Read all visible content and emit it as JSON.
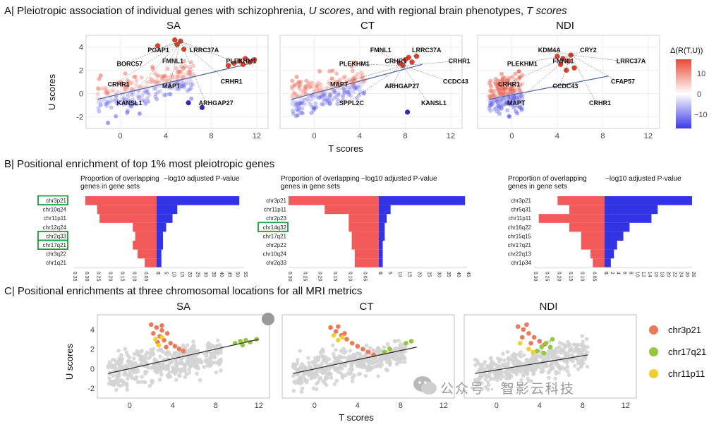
{
  "titles": {
    "a_prefix": "A| Pleiotropic association of individual genes with schizophrenia, ",
    "a_u": "U scores",
    "a_mid": ", and with regional brain phenotypes, ",
    "a_t": "T scores",
    "b": "B| Positional enrichment of top 1% most pleiotropic genes",
    "c": "C| Positional enrichments at three chromosomal locations for all MRI metrics"
  },
  "panelA": {
    "ylabel": "U scores",
    "xlabel": "T scores",
    "legend_title": "Δ(R(T,U))",
    "legend_ticks": [
      "10",
      "0",
      "−10"
    ],
    "colors": {
      "high": "#e84a35",
      "mid": "#ffffff",
      "low": "#3b3be8"
    },
    "panels": [
      {
        "title": "SA",
        "gene_labels": [
          "PGAP1",
          "LRRC37A",
          "BORC57",
          "FMNL1",
          "PLEKHM1",
          "CRHR1",
          "MAPT",
          "CRHR1",
          "KANSL1",
          "ARHGAP27"
        ]
      },
      {
        "title": "CT",
        "gene_labels": [
          "FMNL1",
          "LRRC37A",
          "PLEKHM1",
          "CRHR1",
          "CRHR1",
          "MAPT",
          "ARHGAP27",
          "CCDC43",
          "SPPL2C",
          "KANSL1"
        ]
      },
      {
        "title": "NDI",
        "gene_labels": [
          "KDM4A",
          "CRY2",
          "PLEKHM1",
          "FMNL1",
          "LRRC37A",
          "CRHR1",
          "CCDC43",
          "CFAP57",
          "MAPT",
          "CRHR1"
        ]
      }
    ]
  },
  "panelB": {
    "left_header": "Proportion of overlapping genes in gene sets",
    "right_header": "−log10 adjusted P-value",
    "colors": {
      "left": "#f25a5a",
      "right": "#3333e6",
      "highlight": "#1f9a3d"
    }
  },
  "panelC": {
    "ylabel": "U scores",
    "xlabel": "T scores",
    "titles": [
      "SA",
      "CT",
      "NDI"
    ],
    "legend": [
      {
        "name": "chr3p21",
        "color": "#ea7a5a"
      },
      {
        "name": "chr17q21",
        "color": "#93c83e"
      },
      {
        "name": "chr11p11",
        "color": "#f2cf2f"
      }
    ]
  },
  "watermark": "公众号 · 智影云科技",
  "chart_data": [
    {
      "type": "scatter",
      "id": "A-SA",
      "title": "SA",
      "xlabel": "T scores",
      "ylabel": "U scores",
      "xlim": [
        -3,
        13
      ],
      "ylim": [
        -3,
        5
      ],
      "xticks": [
        0,
        4,
        8,
        12
      ],
      "yticks": [
        -2,
        0,
        2,
        4
      ],
      "trend": [
        [
          -2,
          -0.5
        ],
        [
          11.5,
          2.6
        ]
      ],
      "highlight": [
        [
          9.5,
          2.4
        ],
        [
          10,
          2.6
        ],
        [
          10.5,
          2.8
        ],
        [
          11,
          3.0
        ],
        [
          11.4,
          2.7
        ],
        [
          11.8,
          2.9
        ],
        [
          10.8,
          2.5
        ],
        [
          5.3,
          4.5
        ],
        [
          5.0,
          4.2
        ],
        [
          4.8,
          4.6
        ],
        [
          5.6,
          3.8
        ],
        [
          3.3,
          4.1
        ],
        [
          7.2,
          -1.2
        ],
        [
          6.0,
          -0.8
        ]
      ]
    },
    {
      "type": "scatter",
      "id": "A-CT",
      "title": "CT",
      "xlabel": "T scores",
      "ylabel": "U scores",
      "xlim": [
        -3,
        13
      ],
      "ylim": [
        -3,
        5
      ],
      "xticks": [
        0,
        4,
        8,
        12
      ],
      "yticks": [
        -2,
        0,
        2,
        4
      ],
      "trend": [
        [
          -2,
          -0.5
        ],
        [
          9.5,
          2.5
        ]
      ],
      "highlight": [
        [
          7.5,
          2.6
        ],
        [
          8.0,
          2.9
        ],
        [
          8.3,
          3.1
        ],
        [
          7.8,
          2.4
        ],
        [
          8.6,
          2.7
        ],
        [
          9.0,
          3.2
        ],
        [
          8.2,
          -1.6
        ]
      ]
    },
    {
      "type": "scatter",
      "id": "A-NDI",
      "title": "NDI",
      "xlabel": "T scores",
      "ylabel": "U scores",
      "xlim": [
        -3,
        13
      ],
      "ylim": [
        -3,
        5
      ],
      "xticks": [
        0,
        4,
        8,
        12
      ],
      "yticks": [
        -2,
        0,
        2,
        4
      ],
      "trend": [
        [
          -2,
          -0.5
        ],
        [
          8.5,
          1.5
        ]
      ],
      "highlight": [
        [
          4.0,
          3.2
        ],
        [
          4.5,
          3.0
        ],
        [
          5.0,
          2.8
        ],
        [
          5.2,
          3.3
        ],
        [
          4.3,
          2.5
        ],
        [
          5.5,
          2.2
        ],
        [
          4.8,
          2.0
        ]
      ]
    },
    {
      "type": "bar",
      "id": "B-SA",
      "orientation": "diverging",
      "categories": [
        "chr3p21",
        "chr10q24",
        "chr11p11",
        "chr12q24",
        "chr2q33",
        "chr17q21",
        "chr3q22",
        "chr1q21"
      ],
      "highlighted": [
        "chr3p21",
        "chr2q33",
        "chr17q21"
      ],
      "left": {
        "label": "Proportion of overlapping genes in gene sets",
        "values": [
          0.3,
          0.25,
          0.24,
          0.1,
          0.09,
          0.1,
          0.08,
          0.05
        ],
        "ticks": [
          "0.35",
          "0.30",
          "0.25",
          "0.20",
          "0.15",
          "0.10",
          "0.05",
          "0"
        ],
        "max": 0.35
      },
      "right": {
        "label": "−log10 adjusted P-value",
        "values": [
          52,
          13,
          10,
          6,
          4,
          4,
          3,
          3
        ],
        "ticks": [
          "0",
          "5",
          "10",
          "15",
          "20",
          "25",
          "30",
          "35",
          "40",
          "45",
          "50",
          "55"
        ],
        "max": 55
      }
    },
    {
      "type": "bar",
      "id": "B-CT",
      "orientation": "diverging",
      "categories": [
        "chr3p21",
        "chr11p11",
        "chr2p23",
        "chr14q32",
        "chr17q21",
        "chr2p22",
        "chr10q24",
        "chr2q33"
      ],
      "highlighted": [
        "chr14q32"
      ],
      "left": {
        "label": "Proportion of overlapping genes in gene sets",
        "values": [
          0.3,
          0.18,
          0.1,
          0.1,
          0.09,
          0.09,
          0.08,
          0.08
        ],
        "ticks": [
          "0.30",
          "0.25",
          "0.20",
          "0.15",
          "0.10",
          "0.05",
          "0"
        ],
        "max": 0.3
      },
      "right": {
        "label": "−log10 adjusted P-value",
        "values": [
          44,
          6,
          4,
          3,
          3,
          2,
          2,
          2
        ],
        "ticks": [
          "0",
          "5",
          "10",
          "15",
          "20",
          "25",
          "30",
          "35",
          "40",
          "45"
        ],
        "max": 45
      }
    },
    {
      "type": "bar",
      "id": "B-NDI",
      "orientation": "diverging",
      "categories": [
        "chr3p21",
        "chr5q31",
        "chr11p11",
        "chr16q22",
        "chr15q15",
        "chr17q21",
        "chr22q13",
        "chr1p34"
      ],
      "highlighted": [],
      "left": {
        "label": "Proportion of overlapping genes in gene sets",
        "values": [
          0.2,
          0.15,
          0.28,
          0.15,
          0.1,
          0.1,
          0.06,
          0.05
        ],
        "ticks": [
          "0.30",
          "0.25",
          "0.20",
          "0.15",
          "0.10",
          "0.05",
          "0"
        ],
        "max": 0.3
      },
      "right": {
        "label": "−log10 adjusted P-value",
        "values": [
          28,
          17,
          15,
          8,
          6,
          4,
          3,
          2
        ],
        "ticks": [
          "0",
          "2",
          "4",
          "6",
          "8",
          "10",
          "12",
          "14",
          "16",
          "18",
          "20",
          "22",
          "24",
          "26",
          "28"
        ],
        "max": 28
      }
    },
    {
      "type": "scatter",
      "id": "C-SA",
      "title": "SA",
      "xlabel": "T scores",
      "ylabel": "U scores",
      "xlim": [
        -3,
        13
      ],
      "ylim": [
        -3,
        5.5
      ],
      "xticks": [
        0,
        4,
        8,
        12
      ],
      "yticks": [
        -2,
        0,
        2,
        4
      ],
      "trend": [
        [
          -2,
          -0.5
        ],
        [
          12,
          3.0
        ]
      ],
      "series": [
        {
          "name": "chr3p21",
          "points": [
            [
              2.0,
              4.5
            ],
            [
              2.5,
              4.2
            ],
            [
              3.0,
              3.9
            ],
            [
              3.5,
              3.6
            ],
            [
              2.2,
              3.6
            ],
            [
              2.8,
              3.3
            ],
            [
              3.2,
              2.9
            ],
            [
              3.8,
              2.6
            ],
            [
              4.2,
              2.3
            ],
            [
              4.6,
              2.0
            ],
            [
              5.0,
              1.8
            ],
            [
              3.0,
              4.4
            ],
            [
              2.6,
              2.7
            ],
            [
              3.4,
              2.2
            ]
          ]
        },
        {
          "name": "chr17q21",
          "points": [
            [
              9.8,
              2.6
            ],
            [
              10.3,
              2.8
            ],
            [
              10.8,
              2.9
            ],
            [
              11.2,
              2.7
            ],
            [
              11.8,
              3.0
            ],
            [
              10.5,
              2.4
            ]
          ]
        },
        {
          "name": "chr11p11",
          "points": [
            [
              2.4,
              3.0
            ],
            [
              2.7,
              2.4
            ],
            [
              3.0,
              3.2
            ]
          ]
        }
      ]
    },
    {
      "type": "scatter",
      "id": "C-CT",
      "title": "CT",
      "xlabel": "T scores",
      "ylabel": "U scores",
      "xlim": [
        -3,
        13
      ],
      "ylim": [
        -3,
        5.5
      ],
      "xticks": [
        0,
        4,
        8,
        12
      ],
      "yticks": [
        -2,
        0,
        2,
        4
      ],
      "trend": [
        [
          -2,
          -0.5
        ],
        [
          9.5,
          2.2
        ]
      ],
      "series": [
        {
          "name": "chr3p21",
          "points": [
            [
              1.5,
              4.2
            ],
            [
              2.0,
              3.8
            ],
            [
              2.5,
              3.4
            ],
            [
              3.0,
              3.0
            ],
            [
              3.5,
              2.6
            ],
            [
              4.0,
              2.3
            ],
            [
              4.5,
              2.0
            ],
            [
              5.0,
              1.7
            ],
            [
              5.5,
              1.4
            ],
            [
              2.2,
              4.3
            ],
            [
              2.8,
              3.6
            ]
          ]
        },
        {
          "name": "chr17q21",
          "points": [
            [
              6.5,
              1.7
            ],
            [
              7.0,
              2.0
            ],
            [
              8.5,
              2.6
            ],
            [
              9.0,
              2.8
            ]
          ]
        },
        {
          "name": "chr11p11",
          "points": [
            [
              1.8,
              3.4
            ],
            [
              2.2,
              2.9
            ],
            [
              2.6,
              3.2
            ]
          ]
        }
      ]
    },
    {
      "type": "scatter",
      "id": "C-NDI",
      "title": "NDI",
      "xlabel": "T scores",
      "ylabel": "U scores",
      "xlim": [
        -3,
        13
      ],
      "ylim": [
        -3,
        5.5
      ],
      "xticks": [
        0,
        4,
        8,
        12
      ],
      "yticks": [
        -2,
        0,
        2,
        4
      ],
      "trend": [
        [
          -2,
          -0.5
        ],
        [
          8.5,
          1.4
        ]
      ],
      "series": [
        {
          "name": "chr3p21",
          "points": [
            [
              2.0,
              4.3
            ],
            [
              2.5,
              4.0
            ],
            [
              3.0,
              3.6
            ],
            [
              3.5,
              3.2
            ],
            [
              4.0,
              2.8
            ],
            [
              4.5,
              2.5
            ],
            [
              2.4,
              3.2
            ],
            [
              3.2,
              2.6
            ],
            [
              2.8,
              4.5
            ]
          ]
        },
        {
          "name": "chr17q21",
          "points": [
            [
              3.8,
              1.8
            ],
            [
              4.2,
              2.2
            ],
            [
              4.6,
              2.6
            ],
            [
              5.0,
              2.2
            ],
            [
              4.4,
              1.6
            ],
            [
              5.2,
              3.0
            ]
          ]
        },
        {
          "name": "chr11p11",
          "points": [
            [
              2.2,
              2.6
            ],
            [
              3.0,
              2.0
            ],
            [
              3.4,
              1.7
            ]
          ]
        }
      ]
    }
  ]
}
